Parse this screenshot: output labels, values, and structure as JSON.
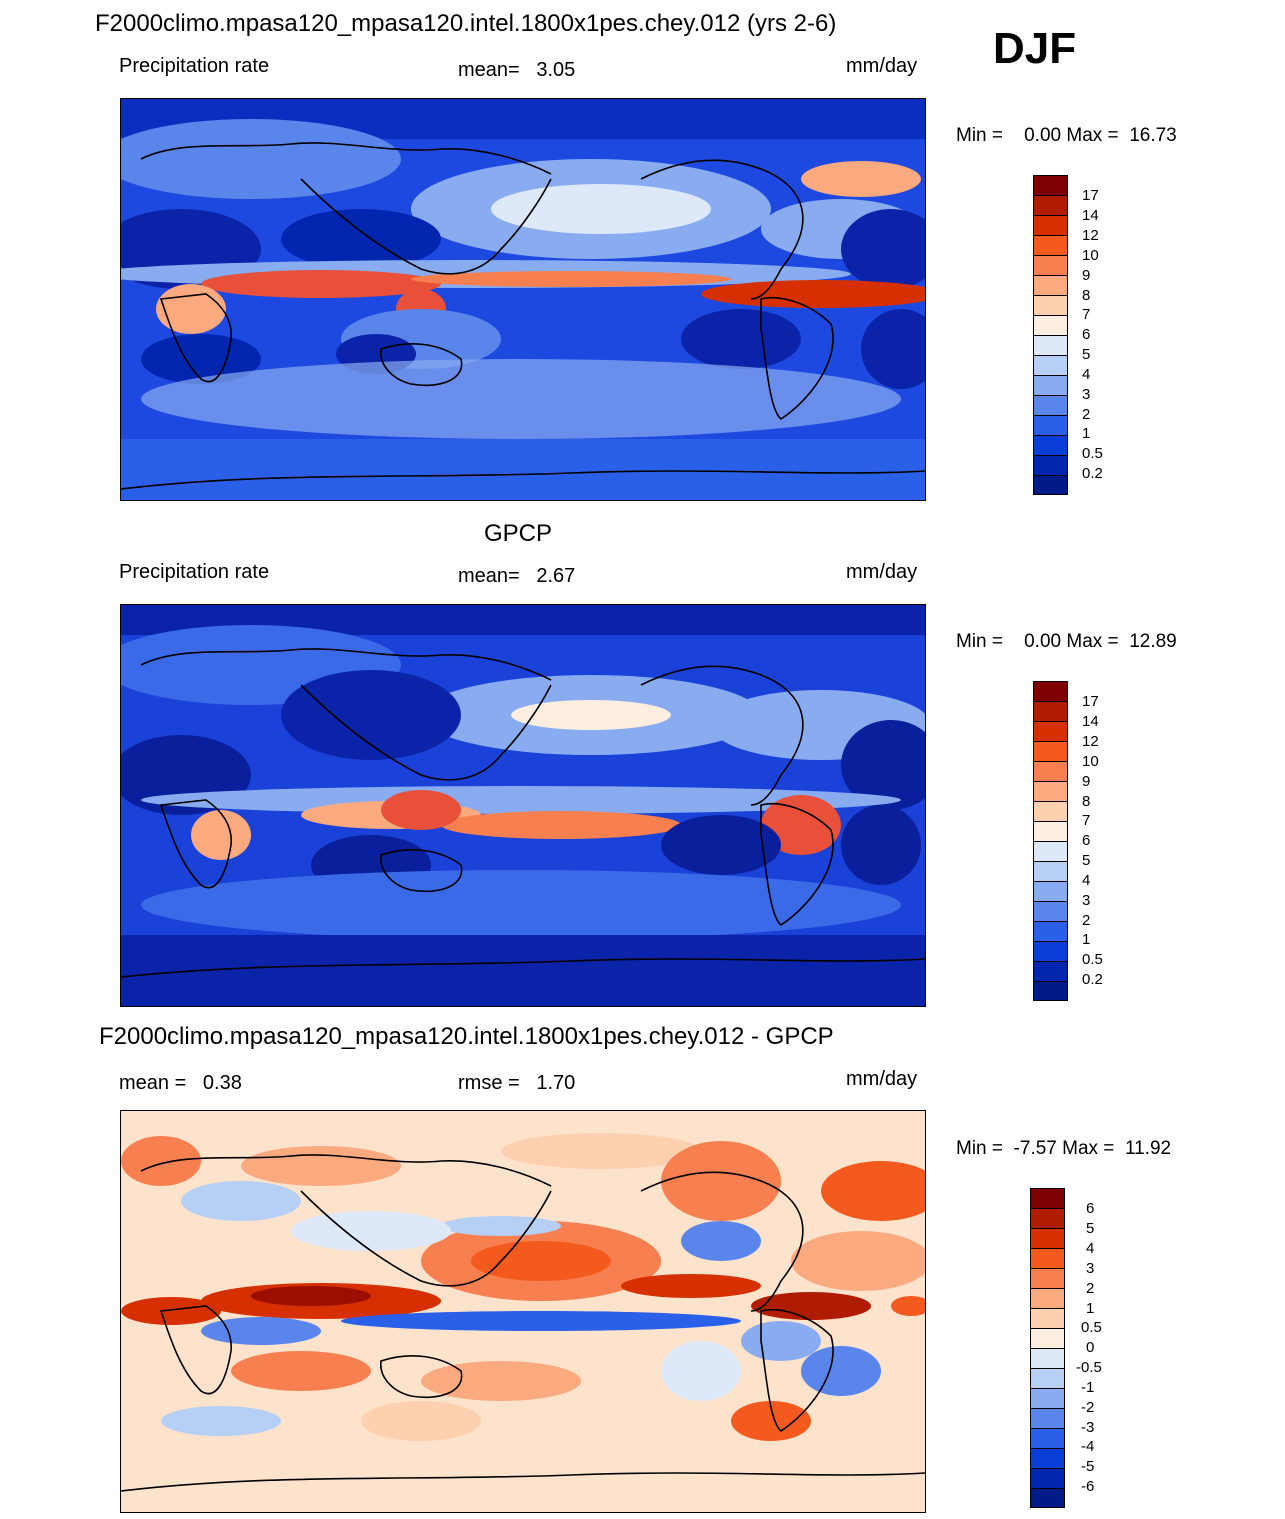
{
  "season": "DJF",
  "panels": [
    {
      "title": "F2000climo.mpasa120_mpasa120.intel.1800x1pes.chey.012 (yrs 2-6)",
      "left_label": "Precipitation rate",
      "center_label": "mean=   3.05",
      "right_label": "mm/day",
      "minmax": "Min =    0.00 Max =  16.73",
      "colorbar": {
        "labels": [
          "17",
          "14",
          "12",
          "10",
          "9",
          "8",
          "7",
          "6",
          "5",
          "4",
          "3",
          "2",
          "1",
          "0.5",
          "0.2"
        ],
        "colors": [
          "#7f0000",
          "#b01c00",
          "#d73000",
          "#f45a1e",
          "#f88050",
          "#fbaa80",
          "#fdd0b0",
          "#fdeee0",
          "#dde8f8",
          "#b6cff5",
          "#89acf0",
          "#5a85ea",
          "#2a5fe8",
          "#0a3ed8",
          "#0026b0",
          "#001a88"
        ]
      },
      "map": {
        "background": "#1e49e0",
        "blobs": [
          {
            "type": "tropical-band",
            "color": "#e8503a"
          },
          {
            "type": "storm-track",
            "color": "#9ebcf2"
          },
          {
            "type": "subtropical-dry",
            "color": "#0a23a8"
          }
        ]
      }
    },
    {
      "title": "GPCP",
      "left_label": "Precipitation rate",
      "center_label": "mean=   2.67",
      "right_label": "mm/day",
      "minmax": "Min =    0.00 Max =  12.89",
      "colorbar": {
        "labels": [
          "17",
          "14",
          "12",
          "10",
          "9",
          "8",
          "7",
          "6",
          "5",
          "4",
          "3",
          "2",
          "1",
          "0.5",
          "0.2"
        ],
        "colors": [
          "#7f0000",
          "#b01c00",
          "#d73000",
          "#f45a1e",
          "#f88050",
          "#fbaa80",
          "#fdd0b0",
          "#fdeee0",
          "#dde8f8",
          "#b6cff5",
          "#89acf0",
          "#5a85ea",
          "#2a5fe8",
          "#0a3ed8",
          "#0026b0",
          "#001a88"
        ]
      },
      "map": {
        "background": "#1a42d8",
        "blobs": [
          {
            "type": "tropical-band",
            "color": "#f07a52"
          },
          {
            "type": "storm-track",
            "color": "#a8c4f4"
          },
          {
            "type": "subtropical-dry",
            "color": "#0a1f9c"
          }
        ]
      }
    },
    {
      "title": "F2000climo.mpasa120_mpasa120.intel.1800x1pes.chey.012 - GPCP",
      "left_label": "mean =   0.38",
      "center_label": "rmse =   1.70",
      "right_label": "mm/day",
      "minmax": "Min =  -7.57 Max =  11.92",
      "colorbar": {
        "labels": [
          "6",
          "5",
          "4",
          "3",
          "2",
          "1",
          "0.5",
          "0",
          "-0.5",
          "-1",
          "-2",
          "-3",
          "-4",
          "-5",
          "-6"
        ],
        "colors": [
          "#7f0000",
          "#b01c00",
          "#d73000",
          "#f45a1e",
          "#f88050",
          "#fbaa80",
          "#fdd0b0",
          "#fdeee0",
          "#dde8f8",
          "#b6cff5",
          "#89acf0",
          "#5a85ea",
          "#2a5fe8",
          "#0a3ed8",
          "#0026b0",
          "#001a88"
        ]
      },
      "map": {
        "background": "#fde2cc",
        "blobs": [
          {
            "type": "tropical-band",
            "color": "#c01800"
          },
          {
            "type": "storm-track",
            "color": "#f6a27a"
          },
          {
            "type": "subtropical-dry",
            "color": "#6f97ee"
          }
        ]
      }
    }
  ]
}
